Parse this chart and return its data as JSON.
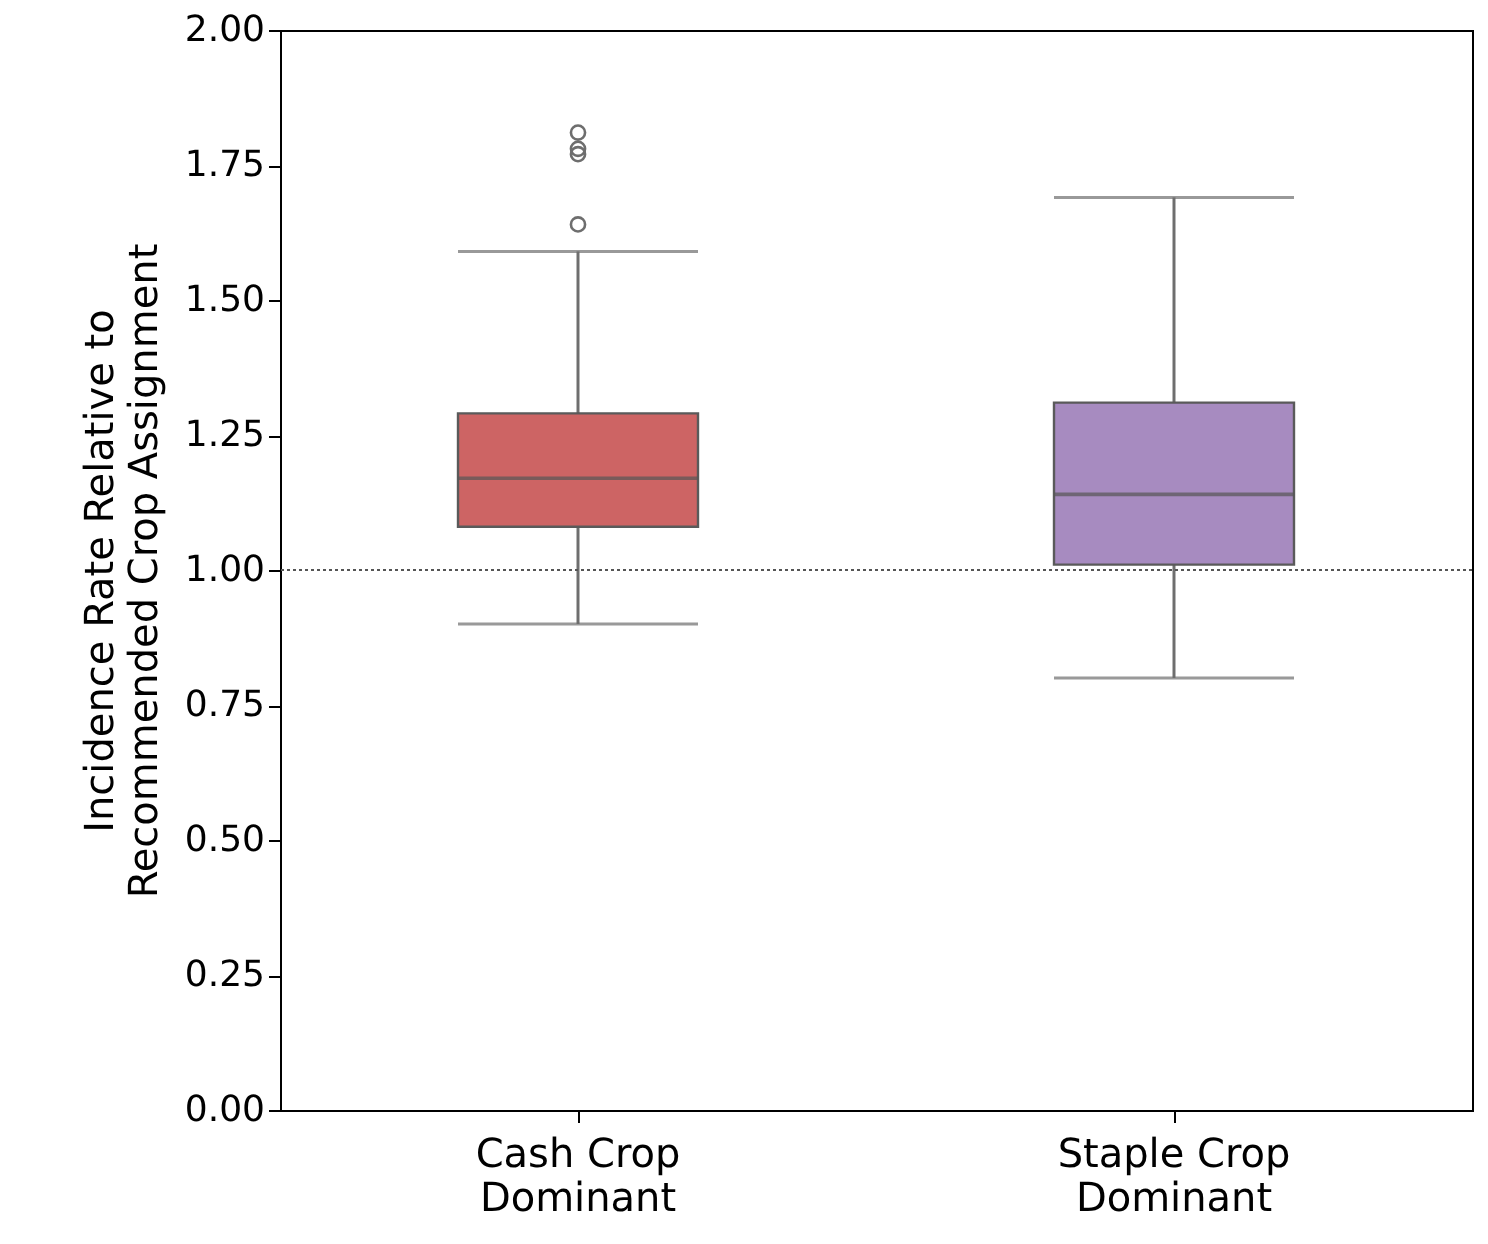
{
  "chart_data": {
    "type": "box",
    "ylabel": "Incidence Rate Relative to Recommended Crop Assignment",
    "categories": [
      "Cash Crop Dominant",
      "Staple Crop Dominant"
    ],
    "colors": [
      "#cd6464",
      "#a78bc0"
    ],
    "boxes": [
      {
        "low": 0.9,
        "q1": 1.08,
        "median": 1.17,
        "q3": 1.29,
        "high": 1.59,
        "outliers": [
          1.81,
          1.78,
          1.77,
          1.64
        ]
      },
      {
        "low": 0.8,
        "q1": 1.01,
        "median": 1.14,
        "q3": 1.31,
        "high": 1.69
      }
    ],
    "ylim": [
      0,
      2
    ],
    "yticks": [
      {
        "value": 0,
        "label": "0.00"
      },
      {
        "value": 0.25,
        "label": "0.25"
      },
      {
        "value": 0.5,
        "label": "0.50"
      },
      {
        "value": 0.75,
        "label": "0.75"
      },
      {
        "value": 1,
        "label": "1.00"
      },
      {
        "value": 1.25,
        "label": "1.25"
      },
      {
        "value": 1.5,
        "label": "1.50"
      },
      {
        "value": 1.75,
        "label": "1.75"
      },
      {
        "value": 2,
        "label": "2.00"
      }
    ],
    "ref_lines": [
      {
        "axis": "y",
        "value": 1,
        "color": "#555555",
        "line_style": "dotted"
      }
    ],
    "grid": false
  }
}
